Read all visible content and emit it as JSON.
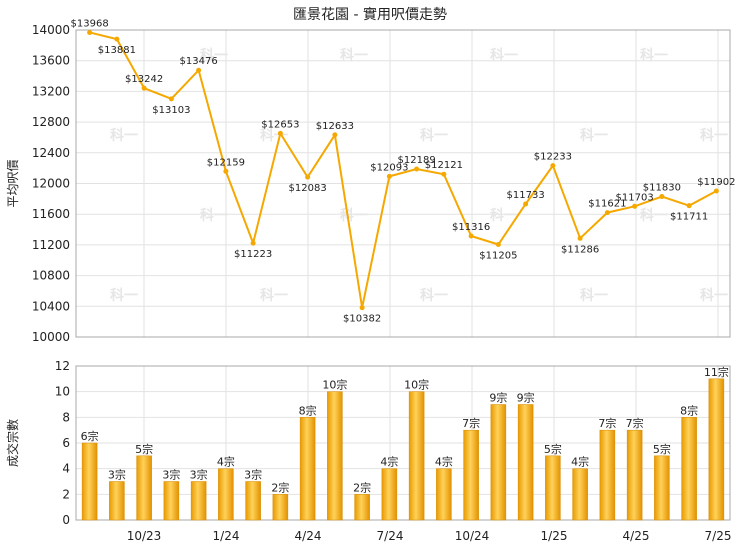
{
  "chart_data": [
    {
      "type": "line",
      "title": "匯景花園 - 實用呎價走勢",
      "ylabel": "平均呎價",
      "ylim": [
        10000,
        14000
      ],
      "yticks": [
        10000,
        10400,
        10800,
        11200,
        11600,
        12000,
        12400,
        12800,
        13200,
        13600,
        14000
      ],
      "x_tick_labels": [
        "10/23",
        "1/24",
        "4/24",
        "7/24",
        "10/24",
        "1/25",
        "4/25",
        "7/25"
      ],
      "values": [
        13968,
        13881,
        13242,
        13103,
        13476,
        12159,
        11223,
        12653,
        12083,
        12633,
        10382,
        12093,
        12189,
        12121,
        11316,
        11205,
        11733,
        12233,
        11286,
        11621,
        11703,
        11830,
        11711,
        11902
      ],
      "labels": [
        "$13968",
        "$13881",
        "$13242",
        "$13103",
        "$13476",
        "$12159",
        "$11223",
        "$12653",
        "$12083",
        "$12633",
        "$10382",
        "$12093",
        "$12189",
        "$12121",
        "$11316",
        "$11205",
        "$11733",
        "$12233",
        "$11286",
        "$11621",
        "$11703",
        "$11830",
        "$11711",
        "$11902"
      ],
      "color": "#f5a800",
      "grid": true
    },
    {
      "type": "bar",
      "ylabel": "成交宗數",
      "ylim": [
        0,
        12
      ],
      "yticks": [
        0,
        2,
        4,
        6,
        8,
        10,
        12
      ],
      "x_tick_labels": [
        "10/23",
        "1/24",
        "4/24",
        "7/24",
        "10/24",
        "1/25",
        "4/25",
        "7/25"
      ],
      "values": [
        6,
        3,
        5,
        3,
        3,
        4,
        3,
        2,
        8,
        10,
        2,
        4,
        10,
        4,
        7,
        9,
        9,
        5,
        4,
        7,
        7,
        5,
        8,
        11
      ],
      "labels": [
        "6宗",
        "3宗",
        "5宗",
        "3宗",
        "3宗",
        "4宗",
        "3宗",
        "2宗",
        "8宗",
        "10宗",
        "2宗",
        "4宗",
        "10宗",
        "4宗",
        "7宗",
        "9宗",
        "9宗",
        "5宗",
        "4宗",
        "7宗",
        "7宗",
        "5宗",
        "8宗",
        "11宗"
      ],
      "color": "#f5b01e",
      "grid": true
    }
  ],
  "watermark": "科一"
}
